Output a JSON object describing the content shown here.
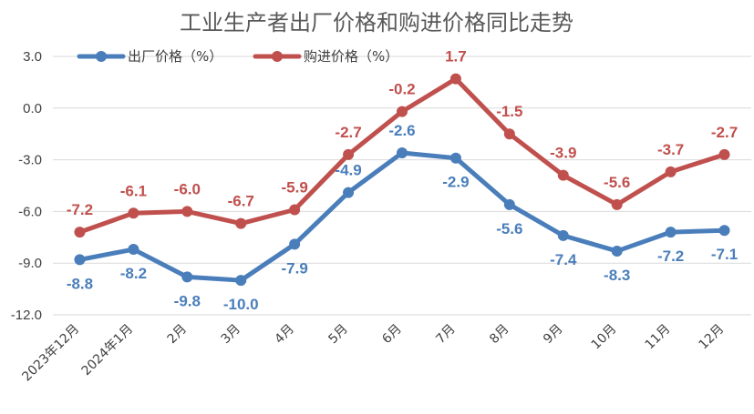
{
  "chart_data": {
    "type": "line",
    "title": "工业生产者出厂价格和购进价格同比走势",
    "categories": [
      "2023年12月",
      "2024年1月",
      "2月",
      "3月",
      "4月",
      "5月",
      "6月",
      "7月",
      "8月",
      "9月",
      "10月",
      "11月",
      "12月"
    ],
    "y_ticks": [
      "3.0",
      "0.0",
      "-3.0",
      "-6.0",
      "-9.0",
      "-12.0"
    ],
    "ylim": [
      -12,
      3
    ],
    "grid": true,
    "legend_position": "top-left",
    "series": [
      {
        "name": "出厂价格（%）",
        "color": "#4a7ebb",
        "values": [
          -8.8,
          -8.2,
          -9.8,
          -10.0,
          -7.9,
          -4.9,
          -2.6,
          -2.9,
          -5.6,
          -7.4,
          -8.3,
          -7.2,
          -7.1
        ],
        "labels": [
          "-8.8",
          "-8.2",
          "-9.8",
          "-10.0",
          "-7.9",
          "-4.9",
          "-2.6",
          "-2.9",
          "-5.6",
          "-7.4",
          "-8.3",
          "-7.2",
          "-7.1"
        ]
      },
      {
        "name": "购进价格（%）",
        "color": "#c0504d",
        "values": [
          -7.2,
          -6.1,
          -6.0,
          -6.7,
          -5.9,
          -2.7,
          -0.2,
          1.7,
          -1.5,
          -3.9,
          -5.6,
          -3.7,
          -2.7
        ],
        "labels": [
          "-7.2",
          "-6.1",
          "-6.0",
          "-6.7",
          "-5.9",
          "-2.7",
          "-0.2",
          "1.7",
          "-1.5",
          "-3.9",
          "-5.6",
          "-3.7",
          "-2.7"
        ]
      }
    ]
  }
}
